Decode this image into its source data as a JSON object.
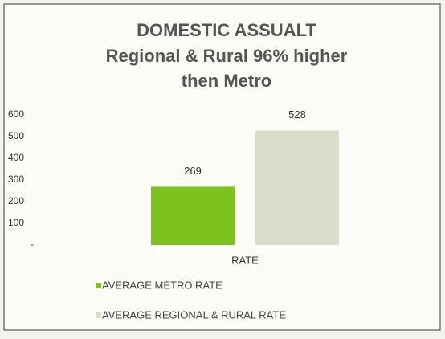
{
  "chart_data": {
    "type": "bar",
    "title": [
      "DOMESTIC ASSUALT",
      "Regional & Rural 96% higher",
      "then Metro"
    ],
    "categories": [
      "RATE"
    ],
    "series": [
      {
        "name": "AVERAGE METRO RATE",
        "color": "#7dc21e",
        "values": [
          269
        ]
      },
      {
        "name": "AVERAGE REGIONAL & RURAL RATE",
        "color": "#dcdccb",
        "values": [
          528
        ]
      }
    ],
    "ylim": [
      0,
      600
    ],
    "yticks": [
      {
        "value": 0,
        "label": "-"
      },
      100,
      200,
      300,
      400,
      500,
      600
    ],
    "grid": false,
    "legend": "bottom"
  }
}
